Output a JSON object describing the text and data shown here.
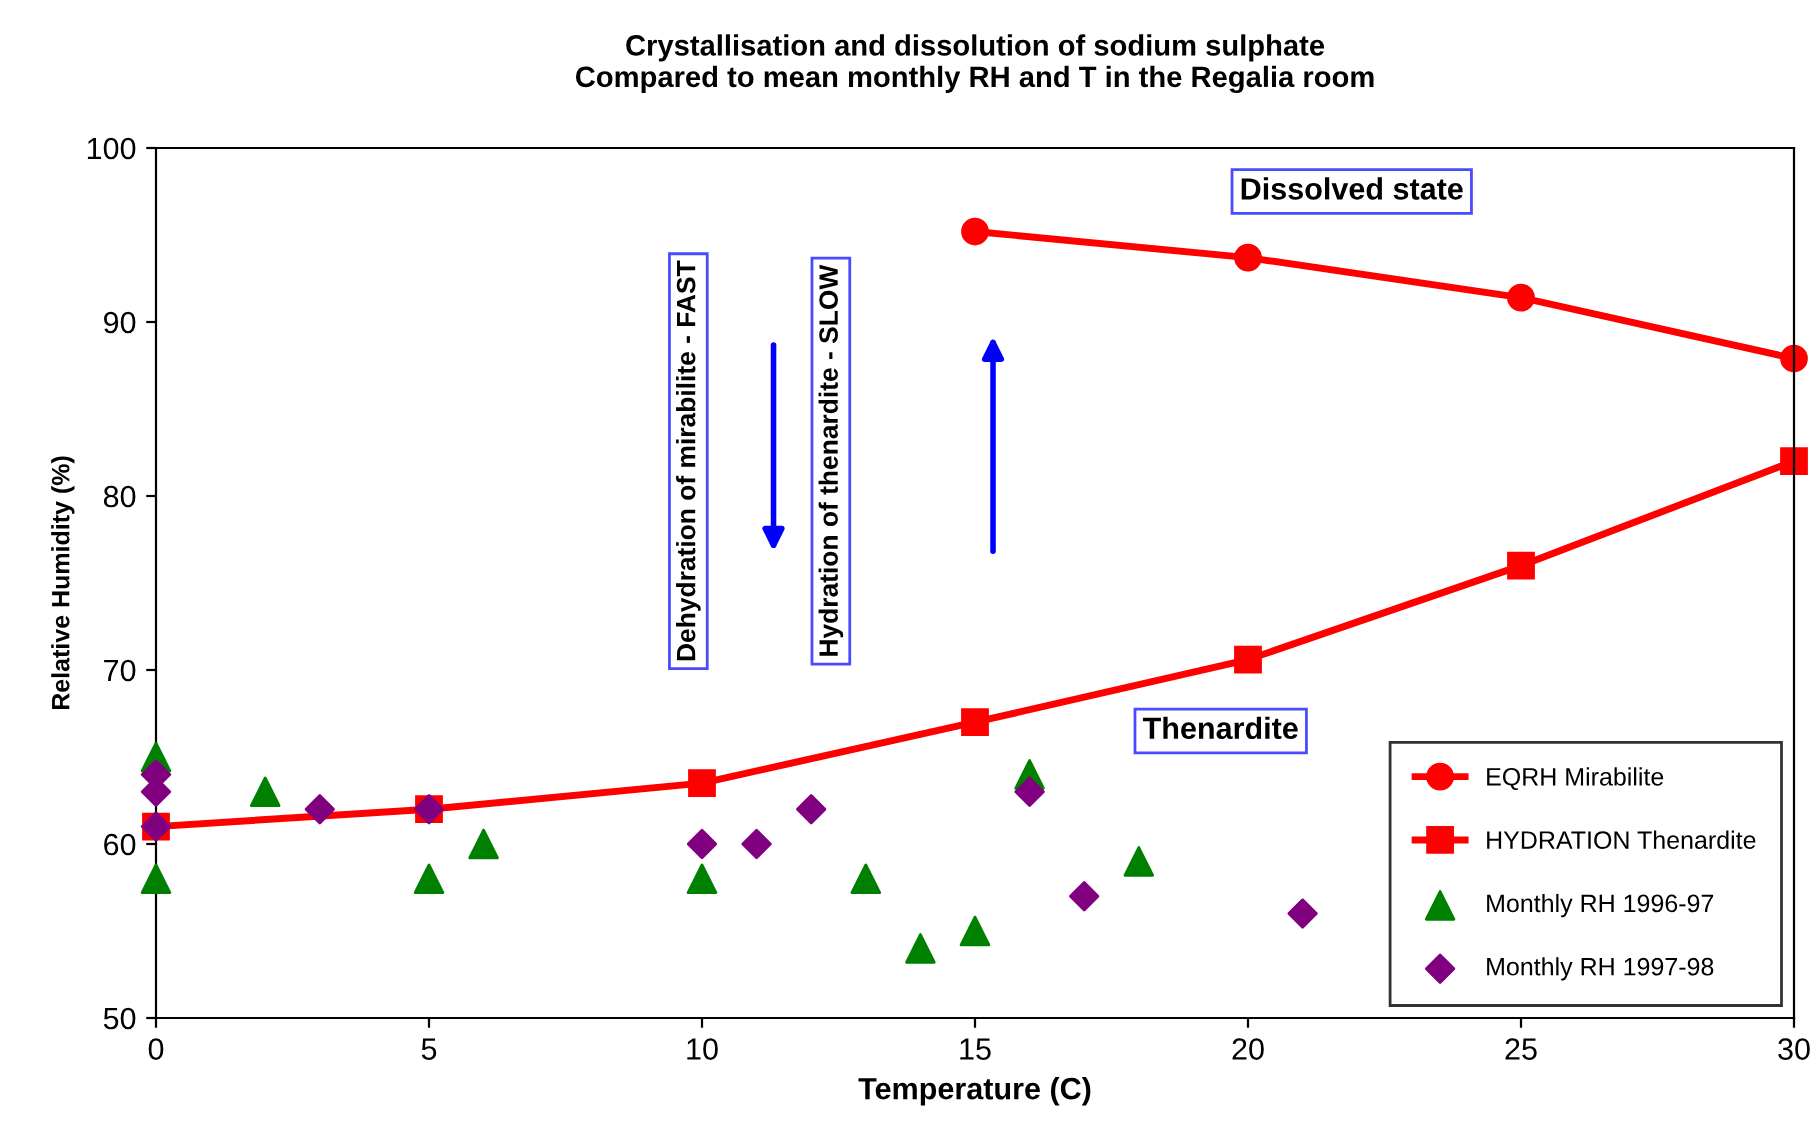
{
  "chart_data": {
    "type": "line",
    "title": "Crystallisation and dissolution of sodium sulphate\nCompared to mean monthly RH and T in the Regalia room",
    "xlabel": "Temperature (C)",
    "ylabel": "Relative Humidity (%)",
    "xlim": [
      0,
      30
    ],
    "ylim": [
      50,
      100
    ],
    "xticks": [
      0,
      5,
      10,
      15,
      20,
      25,
      30
    ],
    "yticks": [
      50,
      60,
      70,
      80,
      90,
      100
    ],
    "grid": false,
    "legend": "bottom right",
    "series": [
      {
        "name": "EQRH Mirabilite",
        "marker": "circle",
        "color": "#ff0000",
        "x": [
          15,
          20,
          25,
          30
        ],
        "values": [
          95.2,
          93.7,
          91.4,
          87.9
        ]
      },
      {
        "name": "HYDRATION Thenardite",
        "marker": "square",
        "color": "#ff0000",
        "x": [
          0,
          5,
          10,
          15,
          20,
          25,
          30
        ],
        "values": [
          61,
          62,
          63.5,
          67,
          70.6,
          76,
          82
        ]
      },
      {
        "name": "Monthly RH 1996-97",
        "type": "scatter",
        "marker": "triangle",
        "color": "#008000",
        "x": [
          0,
          0,
          2,
          5,
          6,
          10,
          13,
          14,
          15,
          16,
          18
        ],
        "values": [
          65,
          58,
          63,
          58,
          60,
          58,
          58,
          54,
          55,
          64,
          59
        ]
      },
      {
        "name": "Monthly RH 1997-98",
        "type": "scatter",
        "marker": "diamond",
        "color": "#800080",
        "x": [
          0,
          0,
          0,
          3,
          5,
          10,
          11,
          12,
          16,
          17,
          21
        ],
        "values": [
          64,
          63,
          61,
          62,
          62,
          60,
          60,
          62,
          63,
          57,
          56
        ]
      }
    ],
    "annotations": [
      "Dissolved state",
      "Thenardite",
      "Dehydration of mirabilite - FAST",
      "Hydration of thenardite - SLOW"
    ]
  }
}
